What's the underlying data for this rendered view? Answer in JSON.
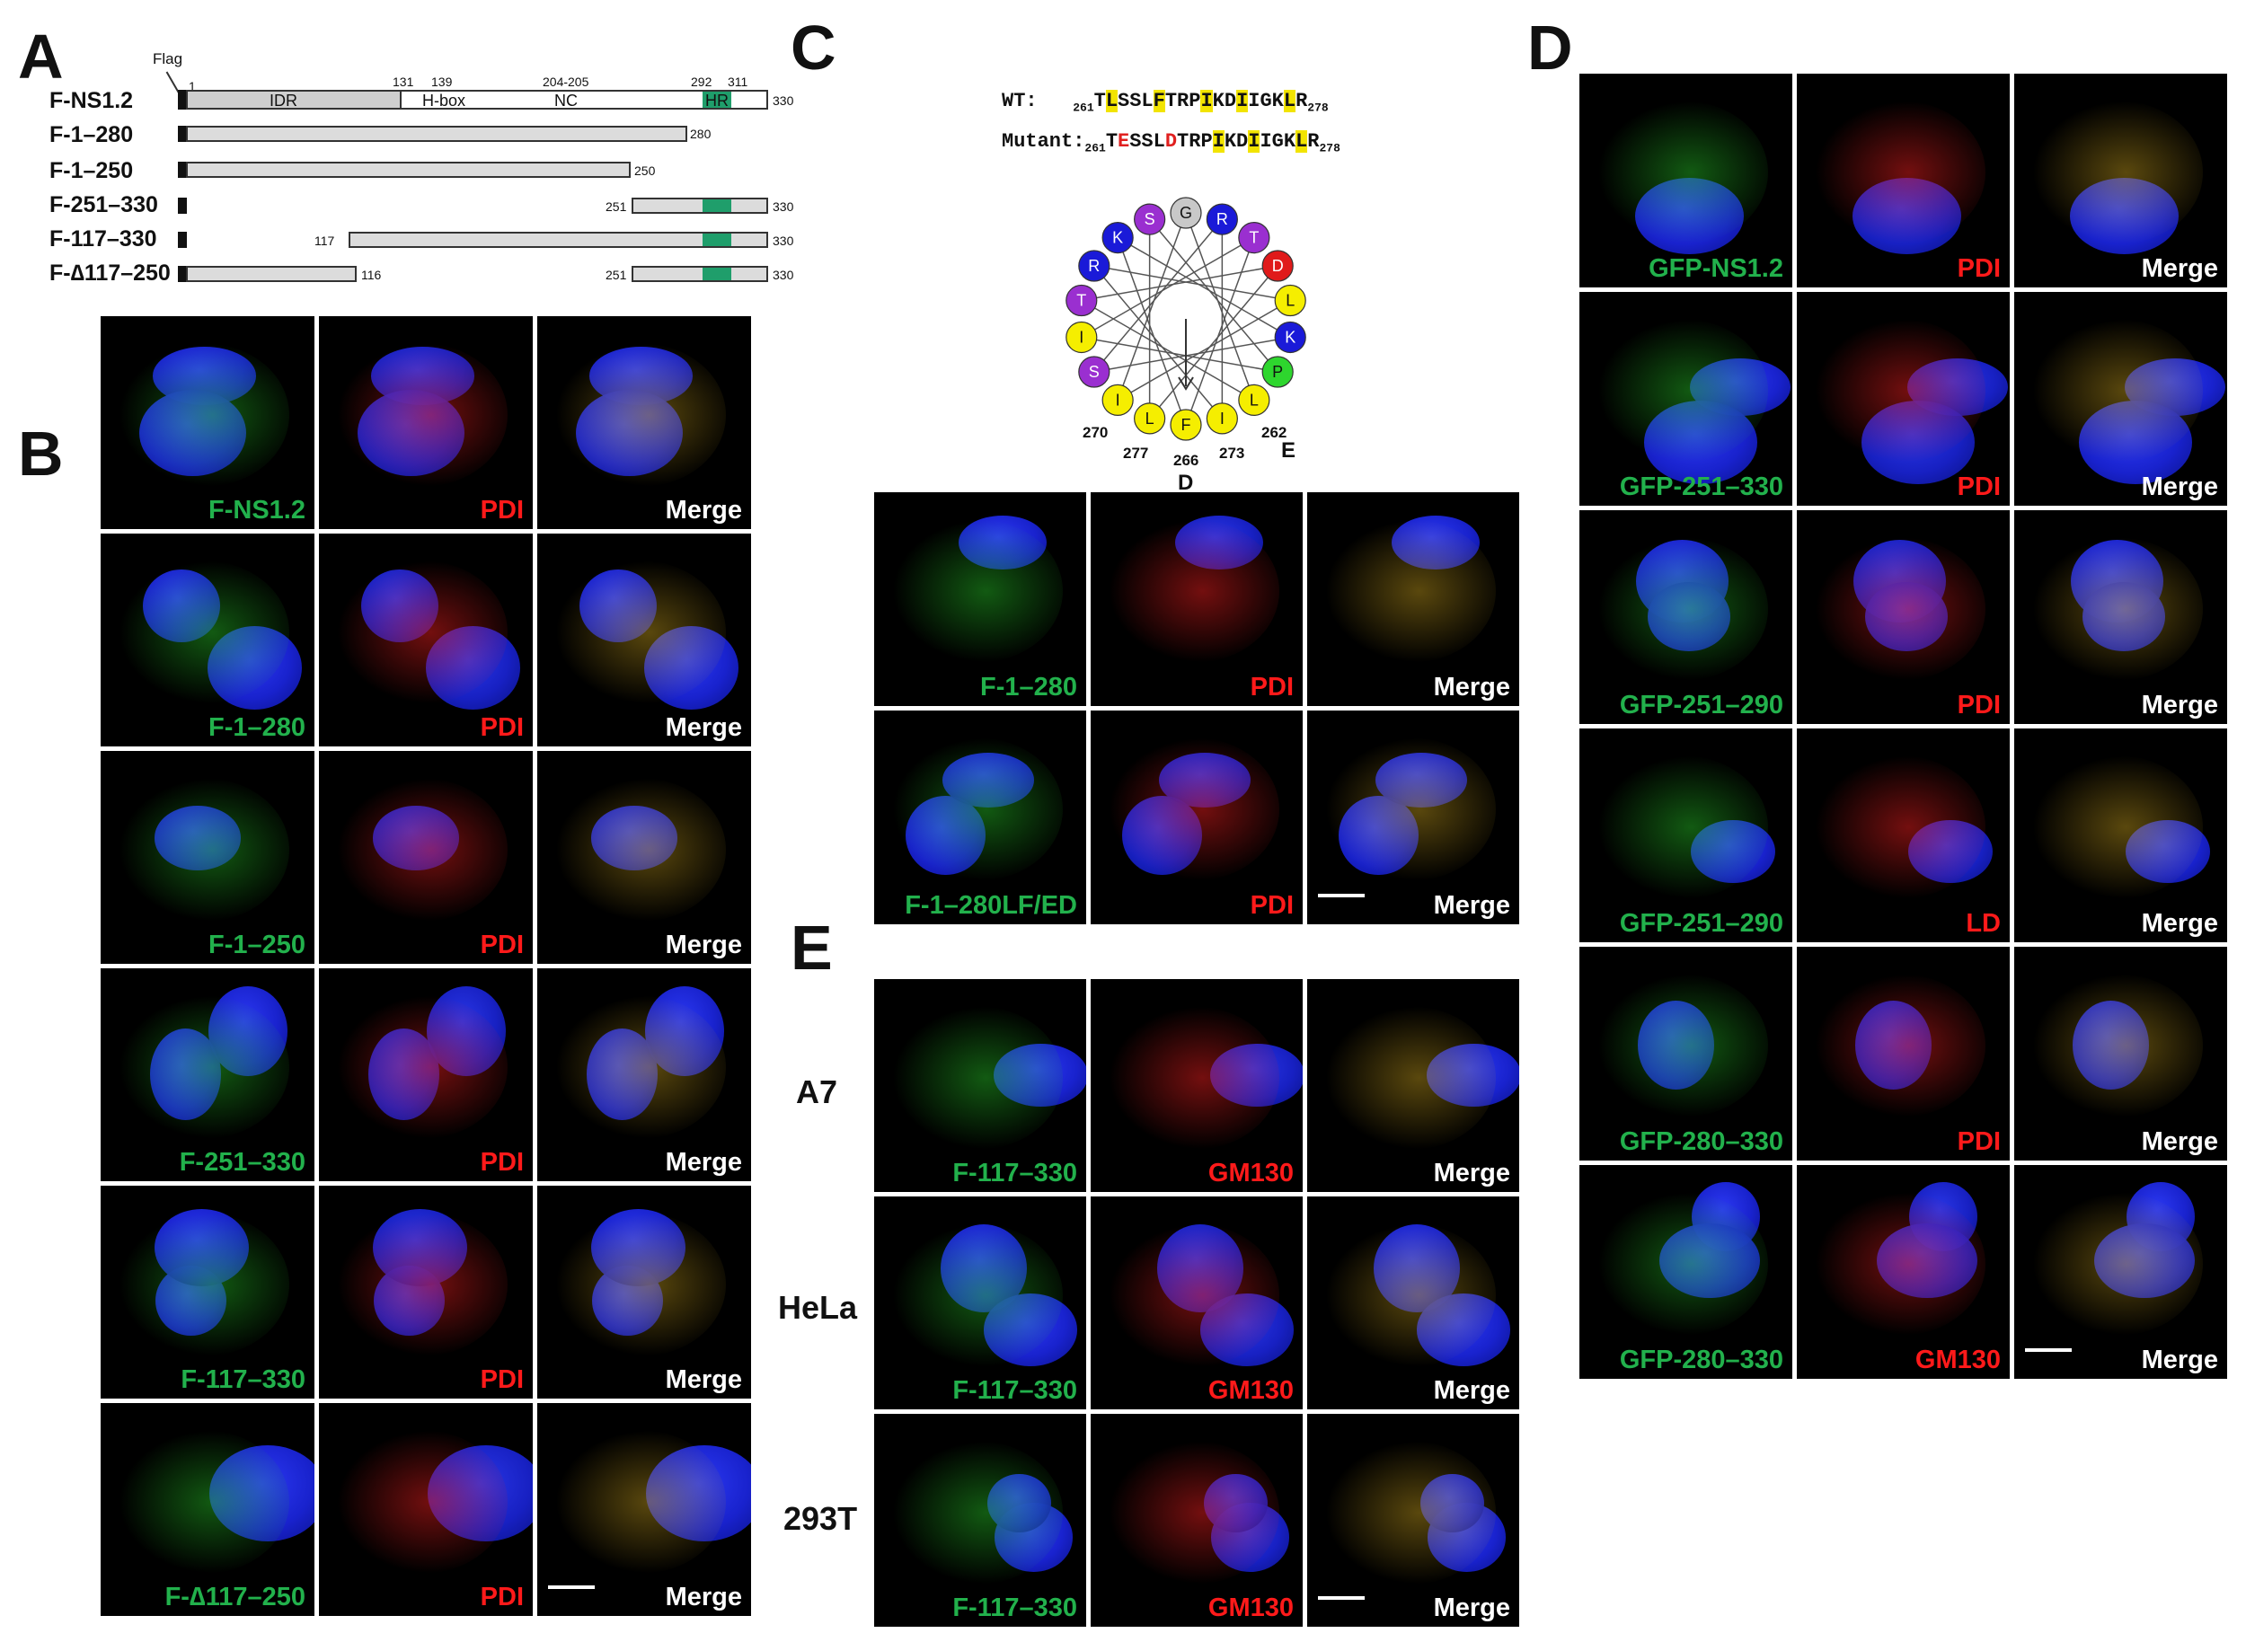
{
  "panels": {
    "A": "A",
    "B": "B",
    "C": "C",
    "D": "D",
    "E": "E"
  },
  "schematic": {
    "flag": "Flag",
    "rows": [
      {
        "label": "F-NS1.2"
      },
      {
        "label": "F-1–280",
        "end": "280"
      },
      {
        "label": "F-1–250",
        "end": "250"
      },
      {
        "label": "F-251–330",
        "start": "251",
        "end": "330"
      },
      {
        "label": "F-117–330",
        "start": "117",
        "end": "330"
      },
      {
        "label": "F-∆117–250",
        "mid": "116",
        "start": "251",
        "end": "330"
      }
    ],
    "domains": {
      "idr": "IDR",
      "hbox": "H-box",
      "nc": "NC",
      "hr": "HR"
    },
    "positions": {
      "p1": "1",
      "p131": "131",
      "p139": "139",
      "p204": "204-205",
      "p292": "292",
      "p311": "311",
      "p330": "330"
    }
  },
  "sequence": {
    "wt_label": "WT:",
    "mut_label": "Mutant:",
    "start": "261",
    "end": "278"
  },
  "helix": {
    "residues": [
      "G",
      "R",
      "T",
      "D",
      "L",
      "K",
      "P",
      "L",
      "I",
      "F",
      "L",
      "I",
      "S",
      "I",
      "T",
      "R",
      "K",
      "S"
    ],
    "numbers": {
      "n270": "270",
      "n277": "277",
      "n266": "266",
      "n273": "273",
      "n262": "262"
    },
    "mut_E": "E",
    "mut_D": "D"
  },
  "panelB": {
    "rows": [
      {
        "construct": "F-NS1.2",
        "marker": "PDI",
        "merge": "Merge"
      },
      {
        "construct": "F-1–280",
        "marker": "PDI",
        "merge": "Merge"
      },
      {
        "construct": "F-1–250",
        "marker": "PDI",
        "merge": "Merge"
      },
      {
        "construct": "F-251–330",
        "marker": "PDI",
        "merge": "Merge"
      },
      {
        "construct": "F-117–330",
        "marker": "PDI",
        "merge": "Merge"
      },
      {
        "construct": "F-∆117–250",
        "marker": "PDI",
        "merge": "Merge"
      }
    ]
  },
  "panelC": {
    "rows": [
      {
        "construct": "F-1–280",
        "marker": "PDI",
        "merge": "Merge"
      },
      {
        "construct": "F-1–280LF/ED",
        "marker": "PDI",
        "merge": "Merge"
      }
    ]
  },
  "panelD": {
    "rows": [
      {
        "construct": "GFP-NS1.2",
        "marker": "PDI",
        "merge": "Merge"
      },
      {
        "construct": "GFP-251–330",
        "marker": "PDI",
        "merge": "Merge"
      },
      {
        "construct": "GFP-251–290",
        "marker": "PDI",
        "merge": "Merge"
      },
      {
        "construct": "GFP-251–290",
        "marker": "LD",
        "merge": "Merge"
      },
      {
        "construct": "GFP-280–330",
        "marker": "PDI",
        "merge": "Merge"
      },
      {
        "construct": "GFP-280–330",
        "marker": "GM130",
        "merge": "Merge"
      }
    ]
  },
  "panelE": {
    "rows": [
      {
        "cell": "A7",
        "construct": "F-117–330",
        "marker": "GM130",
        "merge": "Merge"
      },
      {
        "cell": "HeLa",
        "construct": "F-117–330",
        "marker": "GM130",
        "merge": "Merge"
      },
      {
        "cell": "293T",
        "construct": "F-117–330",
        "marker": "GM130",
        "merge": "Merge"
      }
    ]
  }
}
